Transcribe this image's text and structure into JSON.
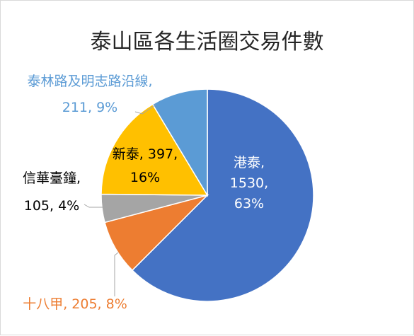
{
  "chart_data": {
    "type": "pie",
    "title": "泰山區各生活圈交易件數",
    "slices": [
      {
        "name": "港泰",
        "value": 1530,
        "percent": "63%",
        "color": "#4472C4",
        "label_lines": [
          "港泰,",
          "1530,",
          "63%"
        ],
        "label_color": "#ffffff"
      },
      {
        "name": "十八甲",
        "value": 205,
        "percent": "8%",
        "color": "#ED7D31",
        "label_lines": [
          "十八甲, 205, 8%"
        ],
        "label_color": "#ED7D31"
      },
      {
        "name": "信華臺鐘",
        "value": 105,
        "percent": "4%",
        "color": "#A5A5A5",
        "label_lines": [
          "信華臺鐘,",
          "105, 4%"
        ],
        "label_color": "#000000"
      },
      {
        "name": "新泰",
        "value": 397,
        "percent": "16%",
        "color": "#FFC000",
        "label_lines": [
          "新泰, 397,",
          "16%"
        ],
        "label_color": "#000000"
      },
      {
        "name": "泰林路及明志路沿線",
        "value": 211,
        "percent": "9%",
        "color": "#5B9BD5",
        "label_lines": [
          "泰林路及明志路沿線,",
          "211, 9%"
        ],
        "label_color": "#5B9BD5"
      }
    ]
  }
}
